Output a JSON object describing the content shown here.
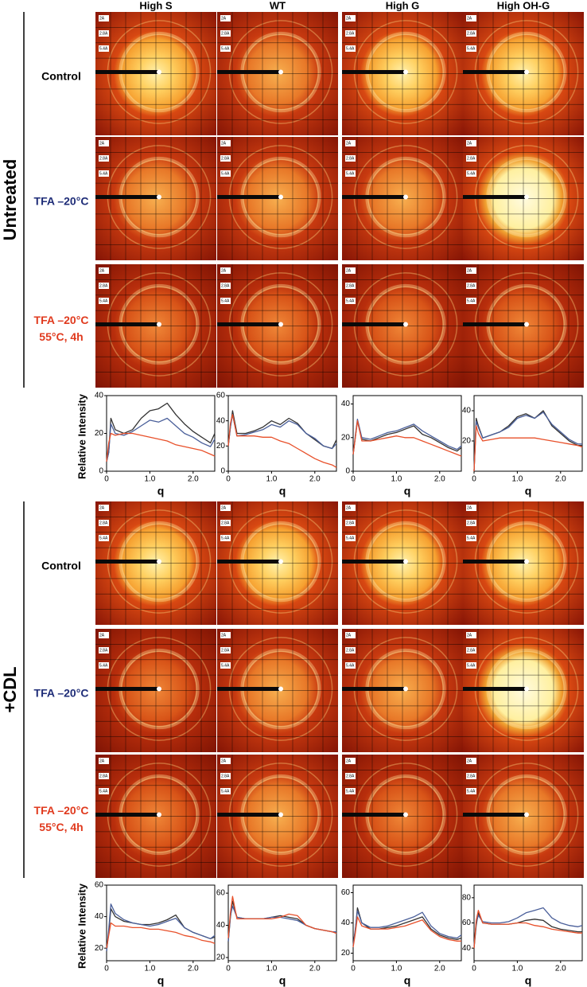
{
  "column_headers": [
    "High S",
    "WT",
    "High G",
    "High OH-G"
  ],
  "sections": [
    {
      "label": "Untreated",
      "rows": [
        [
          "Control"
        ],
        [
          "TFA –20°C"
        ],
        [
          "TFA –20°C",
          "55°C, 4h"
        ]
      ]
    },
    {
      "label": "+CDL",
      "rows": [
        [
          "Control"
        ],
        [
          "TFA –20°C"
        ],
        [
          "TFA –20°C",
          "55°C, 4h"
        ]
      ]
    }
  ],
  "row_colors": [
    "#000000",
    "#1f2d78",
    "#e03a1e"
  ],
  "ring_labels": [
    "2A",
    "2.8A",
    "5.4A"
  ],
  "chart_data": [
    {
      "type": "line",
      "ylabel": "Relative Intensity",
      "xlabel": "q",
      "x": [
        0,
        0.05,
        0.1,
        0.2,
        0.4,
        0.6,
        0.8,
        1.0,
        1.2,
        1.4,
        1.6,
        1.8,
        2.0,
        2.2,
        2.4,
        2.5
      ],
      "xlim": [
        0,
        2.5
      ],
      "xticks": [
        0,
        {
          "value": 1,
          "label": "1.0"
        },
        {
          "value": 2,
          "label": "2.0"
        }
      ],
      "ylim": [
        0,
        40
      ],
      "yticks": [
        0,
        20,
        40
      ],
      "series": [
        {
          "color": "#333333",
          "values": [
            5,
            10,
            28,
            22,
            20,
            22,
            28,
            32,
            33,
            36,
            30,
            25,
            21,
            18,
            15,
            20
          ]
        },
        {
          "color": "#4a5f9a",
          "values": [
            5,
            10,
            25,
            20,
            19,
            21,
            24,
            27,
            26,
            28,
            24,
            20,
            18,
            15,
            13,
            17
          ]
        },
        {
          "color": "#e8502a",
          "values": [
            5,
            15,
            20,
            19,
            20,
            20,
            19,
            18,
            17,
            16,
            14,
            13,
            12,
            11,
            9,
            8
          ]
        }
      ]
    },
    {
      "type": "line",
      "xlabel": "q",
      "x": [
        0,
        0.05,
        0.1,
        0.2,
        0.4,
        0.6,
        0.8,
        1.0,
        1.2,
        1.4,
        1.6,
        1.8,
        2.0,
        2.2,
        2.4,
        2.5
      ],
      "xlim": [
        0,
        2.5
      ],
      "xticks": [
        0,
        {
          "value": 1,
          "label": "1.0"
        },
        {
          "value": 2,
          "label": "2.0"
        }
      ],
      "ylim": [
        0,
        60
      ],
      "yticks": [
        0,
        20,
        40,
        60
      ],
      "series": [
        {
          "color": "#333333",
          "values": [
            20,
            35,
            48,
            30,
            30,
            32,
            35,
            40,
            37,
            42,
            38,
            30,
            25,
            20,
            18,
            25
          ]
        },
        {
          "color": "#4a5f9a",
          "values": [
            20,
            35,
            45,
            28,
            29,
            31,
            33,
            37,
            35,
            40,
            37,
            30,
            26,
            20,
            18,
            22
          ]
        },
        {
          "color": "#e8502a",
          "values": [
            20,
            38,
            45,
            28,
            28,
            28,
            27,
            27,
            24,
            22,
            18,
            14,
            10,
            7,
            5,
            3
          ]
        }
      ]
    },
    {
      "type": "line",
      "xlabel": "q",
      "x": [
        0,
        0.05,
        0.1,
        0.2,
        0.4,
        0.6,
        0.8,
        1.0,
        1.2,
        1.4,
        1.6,
        1.8,
        2.0,
        2.2,
        2.4,
        2.5
      ],
      "xlim": [
        0,
        2.5
      ],
      "xticks": [
        0,
        {
          "value": 1,
          "label": "1.0"
        },
        {
          "value": 2,
          "label": "2.0"
        }
      ],
      "ylim": [
        0,
        45
      ],
      "yticks": [
        0,
        20,
        40
      ],
      "series": [
        {
          "color": "#333333",
          "values": [
            10,
            20,
            30,
            19,
            18,
            20,
            22,
            23,
            25,
            27,
            22,
            20,
            17,
            14,
            12,
            14
          ]
        },
        {
          "color": "#4a5f9a",
          "values": [
            10,
            21,
            31,
            20,
            19,
            21,
            23,
            24,
            26,
            28,
            24,
            21,
            18,
            15,
            13,
            15
          ]
        },
        {
          "color": "#e8502a",
          "values": [
            10,
            20,
            30,
            18,
            18,
            19,
            20,
            21,
            20,
            20,
            18,
            16,
            14,
            12,
            10,
            9
          ]
        }
      ]
    },
    {
      "type": "line",
      "xlabel": "q",
      "x": [
        0,
        0.05,
        0.1,
        0.2,
        0.4,
        0.6,
        0.8,
        1.0,
        1.2,
        1.4,
        1.6,
        1.8,
        2.0,
        2.2,
        2.4,
        2.5
      ],
      "xlim": [
        0,
        2.5
      ],
      "xticks": [
        0,
        {
          "value": 1,
          "label": "1.0"
        },
        {
          "value": 2,
          "label": "2.0"
        }
      ],
      "ylim": [
        0,
        50
      ],
      "yticks": [
        20,
        40
      ],
      "series": [
        {
          "color": "#333333",
          "values": [
            0,
            35,
            30,
            22,
            24,
            26,
            30,
            36,
            38,
            35,
            40,
            30,
            25,
            20,
            17,
            17
          ]
        },
        {
          "color": "#4a5f9a",
          "values": [
            0,
            33,
            29,
            22,
            24,
            26,
            29,
            35,
            37,
            35,
            39,
            31,
            26,
            21,
            18,
            18
          ]
        },
        {
          "color": "#e8502a",
          "values": [
            0,
            30,
            25,
            20,
            21,
            22,
            22,
            22,
            22,
            22,
            21,
            20,
            19,
            18,
            17,
            16
          ]
        }
      ]
    },
    {
      "type": "line",
      "ylabel": "Relative Intensity",
      "xlabel": "q",
      "x": [
        0,
        0.05,
        0.1,
        0.2,
        0.4,
        0.6,
        0.8,
        1.0,
        1.2,
        1.4,
        1.6,
        1.8,
        2.0,
        2.2,
        2.4,
        2.5
      ],
      "xlim": [
        0,
        2.5
      ],
      "xticks": [
        0,
        {
          "value": 1,
          "label": "1.0"
        },
        {
          "value": 2,
          "label": "2.0"
        }
      ],
      "ylim": [
        12,
        60
      ],
      "yticks": [
        20,
        40,
        60
      ],
      "series": [
        {
          "color": "#333333",
          "values": [
            18,
            30,
            45,
            40,
            37,
            36,
            35,
            35,
            36,
            38,
            41,
            33,
            30,
            28,
            26,
            27
          ]
        },
        {
          "color": "#4a5f9a",
          "values": [
            18,
            32,
            48,
            42,
            38,
            36,
            35,
            34,
            35,
            37,
            39,
            33,
            30,
            28,
            26,
            28
          ]
        },
        {
          "color": "#e8502a",
          "values": [
            20,
            28,
            36,
            34,
            34,
            33,
            33,
            32,
            32,
            31,
            30,
            28,
            27,
            25,
            24,
            23
          ]
        }
      ]
    },
    {
      "type": "line",
      "xlabel": "q",
      "x": [
        0,
        0.05,
        0.1,
        0.2,
        0.4,
        0.6,
        0.8,
        1.0,
        1.2,
        1.4,
        1.6,
        1.8,
        2.0,
        2.2,
        2.4,
        2.5
      ],
      "xlim": [
        0,
        2.5
      ],
      "xticks": [
        0,
        {
          "value": 1,
          "label": "1.0"
        },
        {
          "value": 2,
          "label": "2.0"
        }
      ],
      "ylim": [
        18,
        65
      ],
      "yticks": [
        20,
        40,
        60
      ],
      "series": [
        {
          "color": "#333333",
          "values": [
            30,
            45,
            55,
            45,
            44,
            44,
            44,
            45,
            46,
            45,
            44,
            40,
            38,
            37,
            36,
            36
          ]
        },
        {
          "color": "#4a5f9a",
          "values": [
            30,
            46,
            52,
            45,
            44,
            44,
            44,
            45,
            45,
            44,
            43,
            40,
            38,
            37,
            36,
            36
          ]
        },
        {
          "color": "#e8502a",
          "values": [
            32,
            48,
            58,
            44,
            44,
            44,
            44,
            44,
            45,
            47,
            46,
            40,
            38,
            37,
            36,
            35
          ]
        }
      ]
    },
    {
      "type": "line",
      "xlabel": "q",
      "x": [
        0,
        0.05,
        0.1,
        0.2,
        0.4,
        0.6,
        0.8,
        1.0,
        1.2,
        1.4,
        1.6,
        1.8,
        2.0,
        2.2,
        2.4,
        2.5
      ],
      "xlim": [
        0,
        2.5
      ],
      "xticks": [
        0,
        {
          "value": 1,
          "label": "1.0"
        },
        {
          "value": 2,
          "label": "2.0"
        }
      ],
      "ylim": [
        15,
        65
      ],
      "yticks": [
        20,
        40,
        60
      ],
      "series": [
        {
          "color": "#333333",
          "values": [
            25,
            35,
            50,
            40,
            36,
            36,
            37,
            38,
            40,
            42,
            44,
            36,
            32,
            30,
            29,
            30
          ]
        },
        {
          "color": "#4a5f9a",
          "values": [
            25,
            36,
            48,
            40,
            37,
            37,
            38,
            40,
            42,
            44,
            47,
            38,
            33,
            31,
            30,
            32
          ]
        },
        {
          "color": "#e8502a",
          "values": [
            24,
            33,
            44,
            38,
            36,
            36,
            36,
            37,
            38,
            40,
            42,
            35,
            31,
            29,
            28,
            28
          ]
        }
      ]
    },
    {
      "type": "line",
      "xlabel": "q",
      "x": [
        0,
        0.05,
        0.1,
        0.2,
        0.4,
        0.6,
        0.8,
        1.0,
        1.2,
        1.4,
        1.6,
        1.8,
        2.0,
        2.2,
        2.4,
        2.5
      ],
      "xlim": [
        0,
        2.5
      ],
      "xticks": [
        0,
        {
          "value": 1,
          "label": "1.0"
        },
        {
          "value": 2,
          "label": "2.0"
        }
      ],
      "ylim": [
        30,
        90
      ],
      "yticks": [
        40,
        60,
        80
      ],
      "series": [
        {
          "color": "#333333",
          "values": [
            40,
            58,
            68,
            60,
            59,
            59,
            59,
            60,
            62,
            63,
            62,
            57,
            55,
            54,
            53,
            53
          ]
        },
        {
          "color": "#4a5f9a",
          "values": [
            42,
            60,
            66,
            61,
            60,
            60,
            61,
            64,
            68,
            70,
            72,
            64,
            60,
            58,
            57,
            58
          ]
        },
        {
          "color": "#e8502a",
          "values": [
            40,
            62,
            70,
            60,
            59,
            59,
            59,
            60,
            60,
            58,
            57,
            55,
            54,
            53,
            52,
            52
          ]
        }
      ]
    }
  ]
}
